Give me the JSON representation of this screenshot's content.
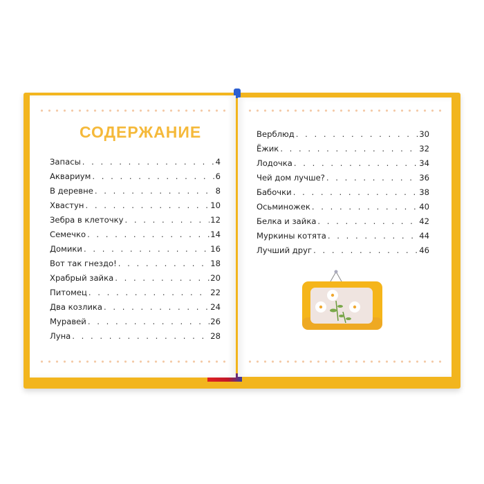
{
  "left_page": {
    "title": "СОДЕРЖАНИЕ",
    "entries": [
      {
        "title": "Запасы",
        "page": "4"
      },
      {
        "title": "Аквариум",
        "page": "6"
      },
      {
        "title": "В деревне",
        "page": "8"
      },
      {
        "title": "Хвастун",
        "page": "10"
      },
      {
        "title": "Зебра в клеточку",
        "page": "12"
      },
      {
        "title": "Семечко",
        "page": "14"
      },
      {
        "title": "Домики",
        "page": "16"
      },
      {
        "title": "Вот так гнездо!",
        "page": "18"
      },
      {
        "title": "Храбрый зайка",
        "page": "20"
      },
      {
        "title": "Питомец",
        "page": "22"
      },
      {
        "title": "Два козлика",
        "page": "24"
      },
      {
        "title": "Муравей",
        "page": "26"
      },
      {
        "title": "Луна",
        "page": "28"
      }
    ]
  },
  "right_page": {
    "entries": [
      {
        "title": "Верблюд",
        "page": "30"
      },
      {
        "title": "Ёжик",
        "page": "32"
      },
      {
        "title": "Лодочка",
        "page": "34"
      },
      {
        "title": "Чей дом лучше?",
        "page": "36"
      },
      {
        "title": "Бабочки",
        "page": "38"
      },
      {
        "title": "Осьминожек",
        "page": "40"
      },
      {
        "title": "Белка и зайка",
        "page": "42"
      },
      {
        "title": "Муркины котята",
        "page": "44"
      },
      {
        "title": "Лучший друг",
        "page": "46"
      }
    ],
    "illustration": "framed-daisies-picture"
  },
  "colors": {
    "cover": "#f2b51e",
    "title": "#f5b93a",
    "dots": "#f3c9a6"
  }
}
